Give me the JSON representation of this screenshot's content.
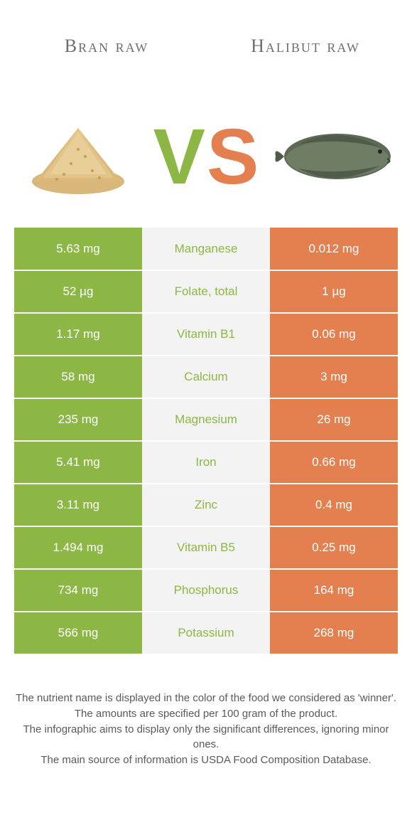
{
  "colors": {
    "left": "#8db744",
    "right": "#e47f4f",
    "mid_bg": "#f3f3f3",
    "text_white": "#ffffff",
    "text_dark": "#444444"
  },
  "header": {
    "left_title": "Bran raw",
    "right_title": "Halibut raw"
  },
  "vs": {
    "v": "V",
    "s": "S"
  },
  "rows": [
    {
      "left": "5.63 mg",
      "label": "Manganese",
      "right": "0.012 mg",
      "winner": "left"
    },
    {
      "left": "52 µg",
      "label": "Folate, total",
      "right": "1 µg",
      "winner": "left"
    },
    {
      "left": "1.17 mg",
      "label": "Vitamin B1",
      "right": "0.06 mg",
      "winner": "left"
    },
    {
      "left": "58 mg",
      "label": "Calcium",
      "right": "3 mg",
      "winner": "left"
    },
    {
      "left": "235 mg",
      "label": "Magnesium",
      "right": "26 mg",
      "winner": "left"
    },
    {
      "left": "5.41 mg",
      "label": "Iron",
      "right": "0.66 mg",
      "winner": "left"
    },
    {
      "left": "3.11 mg",
      "label": "Zinc",
      "right": "0.4 mg",
      "winner": "left"
    },
    {
      "left": "1.494 mg",
      "label": "Vitamin B5",
      "right": "0.25 mg",
      "winner": "left"
    },
    {
      "left": "734 mg",
      "label": "Phosphorus",
      "right": "164 mg",
      "winner": "left"
    },
    {
      "left": "566 mg",
      "label": "Potassium",
      "right": "268 mg",
      "winner": "left"
    }
  ],
  "footnotes": [
    "The nutrient name is displayed in the color of the food we considered as 'winner'.",
    "The amounts are specified per 100 gram of the product.",
    "The infographic aims to display only the significant differences, ignoring minor ones.",
    "The main source of information is USDA Food Composition Database."
  ]
}
